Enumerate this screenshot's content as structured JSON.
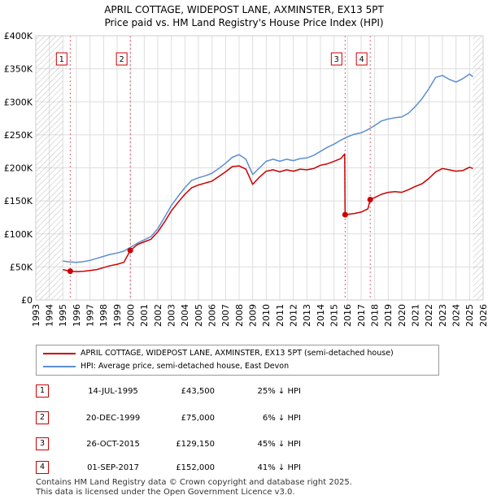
{
  "title_line1": "APRIL COTTAGE, WIDEPOST LANE, AXMINSTER, EX13 5PT",
  "title_line2": "Price paid vs. HM Land Registry's House Price Index (HPI)",
  "colors": {
    "price": "#cc0000",
    "hpi": "#5b8fd0",
    "marker_line": "#e06070",
    "hatch": "#bbbbbb",
    "grid": "#dddddd"
  },
  "chart_data": {
    "type": "line",
    "y_tick_labels": [
      "£0",
      "£50K",
      "£100K",
      "£150K",
      "£200K",
      "£250K",
      "£300K",
      "£350K",
      "£400K"
    ],
    "y_ticks": [
      0,
      50000,
      100000,
      150000,
      200000,
      250000,
      300000,
      350000,
      400000
    ],
    "ylim": [
      0,
      400000
    ],
    "xlim": [
      1993,
      2026
    ],
    "x_ticks": [
      1993,
      1994,
      1995,
      1996,
      1997,
      1998,
      1999,
      2000,
      2001,
      2002,
      2003,
      2004,
      2005,
      2006,
      2007,
      2008,
      2009,
      2010,
      2011,
      2012,
      2013,
      2014,
      2015,
      2016,
      2017,
      2018,
      2019,
      2020,
      2021,
      2022,
      2023,
      2024,
      2025,
      2026
    ],
    "data_start": 1995.0,
    "data_end": 2025.25,
    "series": [
      {
        "name": "APRIL COTTAGE, WIDEPOST LANE, AXMINSTER, EX13 5PT (semi-detached house)",
        "color": "#cc0000",
        "points": [
          [
            1995.0,
            46000
          ],
          [
            1995.54,
            43500
          ],
          [
            1996.0,
            43000
          ],
          [
            1996.5,
            43500
          ],
          [
            1997.0,
            44500
          ],
          [
            1997.5,
            46000
          ],
          [
            1998.0,
            49000
          ],
          [
            1998.5,
            52000
          ],
          [
            1999.0,
            54000
          ],
          [
            1999.5,
            57000
          ],
          [
            1999.97,
            75000
          ],
          [
            2000.5,
            84000
          ],
          [
            2001.0,
            88000
          ],
          [
            2001.5,
            92000
          ],
          [
            2002.0,
            103000
          ],
          [
            2002.5,
            118000
          ],
          [
            2003.0,
            135000
          ],
          [
            2003.5,
            148000
          ],
          [
            2004.0,
            160000
          ],
          [
            2004.5,
            170000
          ],
          [
            2005.0,
            174000
          ],
          [
            2005.5,
            177000
          ],
          [
            2006.0,
            180000
          ],
          [
            2006.5,
            187000
          ],
          [
            2007.0,
            194000
          ],
          [
            2007.5,
            202000
          ],
          [
            2008.0,
            203000
          ],
          [
            2008.5,
            198000
          ],
          [
            2009.0,
            175000
          ],
          [
            2009.5,
            186000
          ],
          [
            2010.0,
            195000
          ],
          [
            2010.5,
            197000
          ],
          [
            2011.0,
            194000
          ],
          [
            2011.5,
            197000
          ],
          [
            2012.0,
            195000
          ],
          [
            2012.5,
            198000
          ],
          [
            2013.0,
            197000
          ],
          [
            2013.5,
            199000
          ],
          [
            2014.0,
            204000
          ],
          [
            2014.5,
            206000
          ],
          [
            2015.0,
            210000
          ],
          [
            2015.5,
            214000
          ],
          [
            2015.79,
            221000
          ],
          [
            2015.82,
            129150
          ],
          [
            2016.5,
            131000
          ],
          [
            2017.0,
            133000
          ],
          [
            2017.5,
            138000
          ],
          [
            2017.67,
            152000
          ],
          [
            2018.0,
            155000
          ],
          [
            2018.5,
            160000
          ],
          [
            2019.0,
            163000
          ],
          [
            2019.5,
            164000
          ],
          [
            2020.0,
            163000
          ],
          [
            2020.5,
            167000
          ],
          [
            2021.0,
            172000
          ],
          [
            2021.5,
            176000
          ],
          [
            2022.0,
            184000
          ],
          [
            2022.5,
            194000
          ],
          [
            2023.0,
            199000
          ],
          [
            2023.5,
            197000
          ],
          [
            2024.0,
            195000
          ],
          [
            2024.5,
            196000
          ],
          [
            2025.0,
            201000
          ],
          [
            2025.25,
            199000
          ]
        ]
      },
      {
        "name": "HPI: Average price, semi-detached house, East Devon",
        "color": "#5b8fd0",
        "points": [
          [
            1995.0,
            59000
          ],
          [
            1995.5,
            57500
          ],
          [
            1996.0,
            57000
          ],
          [
            1996.5,
            58000
          ],
          [
            1997.0,
            60000
          ],
          [
            1997.5,
            63000
          ],
          [
            1998.0,
            66000
          ],
          [
            1998.5,
            69000
          ],
          [
            1999.0,
            71000
          ],
          [
            1999.5,
            74000
          ],
          [
            2000.0,
            80000
          ],
          [
            2000.5,
            86000
          ],
          [
            2001.0,
            91000
          ],
          [
            2001.5,
            96000
          ],
          [
            2002.0,
            108000
          ],
          [
            2002.5,
            125000
          ],
          [
            2003.0,
            143000
          ],
          [
            2003.5,
            157000
          ],
          [
            2004.0,
            170000
          ],
          [
            2004.5,
            181000
          ],
          [
            2005.0,
            185000
          ],
          [
            2005.5,
            188000
          ],
          [
            2006.0,
            192000
          ],
          [
            2006.5,
            199000
          ],
          [
            2007.0,
            207000
          ],
          [
            2007.5,
            216000
          ],
          [
            2008.0,
            220000
          ],
          [
            2008.5,
            213000
          ],
          [
            2009.0,
            190000
          ],
          [
            2009.5,
            200000
          ],
          [
            2010.0,
            210000
          ],
          [
            2010.5,
            213000
          ],
          [
            2011.0,
            210000
          ],
          [
            2011.5,
            213000
          ],
          [
            2012.0,
            211000
          ],
          [
            2012.5,
            214000
          ],
          [
            2013.0,
            215000
          ],
          [
            2013.5,
            219000
          ],
          [
            2014.0,
            225000
          ],
          [
            2014.5,
            231000
          ],
          [
            2015.0,
            236000
          ],
          [
            2015.5,
            242000
          ],
          [
            2016.0,
            247000
          ],
          [
            2016.5,
            251000
          ],
          [
            2017.0,
            253000
          ],
          [
            2017.5,
            258000
          ],
          [
            2018.0,
            264000
          ],
          [
            2018.5,
            271000
          ],
          [
            2019.0,
            274000
          ],
          [
            2019.5,
            276000
          ],
          [
            2020.0,
            277000
          ],
          [
            2020.5,
            283000
          ],
          [
            2021.0,
            293000
          ],
          [
            2021.5,
            305000
          ],
          [
            2022.0,
            320000
          ],
          [
            2022.5,
            337000
          ],
          [
            2023.0,
            340000
          ],
          [
            2023.5,
            334000
          ],
          [
            2024.0,
            330000
          ],
          [
            2024.5,
            335000
          ],
          [
            2025.0,
            342000
          ],
          [
            2025.25,
            338000
          ]
        ]
      }
    ],
    "sales": [
      {
        "label": "1",
        "x": 1995.54,
        "y": 43500
      },
      {
        "label": "2",
        "x": 1999.97,
        "y": 75000
      },
      {
        "label": "3",
        "x": 2015.82,
        "y": 129150
      },
      {
        "label": "4",
        "x": 2017.67,
        "y": 152000
      }
    ]
  },
  "legend": {
    "items": [
      {
        "label": "APRIL COTTAGE, WIDEPOST LANE, AXMINSTER, EX13 5PT (semi-detached house)"
      },
      {
        "label": "HPI: Average price, semi-detached house, East Devon"
      }
    ]
  },
  "table": {
    "rows": [
      {
        "num": "1",
        "date": "14-JUL-1995",
        "price": "£43,500",
        "diff": "25% ↓ HPI"
      },
      {
        "num": "2",
        "date": "20-DEC-1999",
        "price": "£75,000",
        "diff": "6% ↓ HPI"
      },
      {
        "num": "3",
        "date": "26-OCT-2015",
        "price": "£129,150",
        "diff": "45% ↓ HPI"
      },
      {
        "num": "4",
        "date": "01-SEP-2017",
        "price": "£152,000",
        "diff": "41% ↓ HPI"
      }
    ]
  },
  "footer": {
    "line1": "Contains HM Land Registry data © Crown copyright and database right 2025.",
    "line2": "This data is licensed under the Open Government Licence v3.0."
  }
}
